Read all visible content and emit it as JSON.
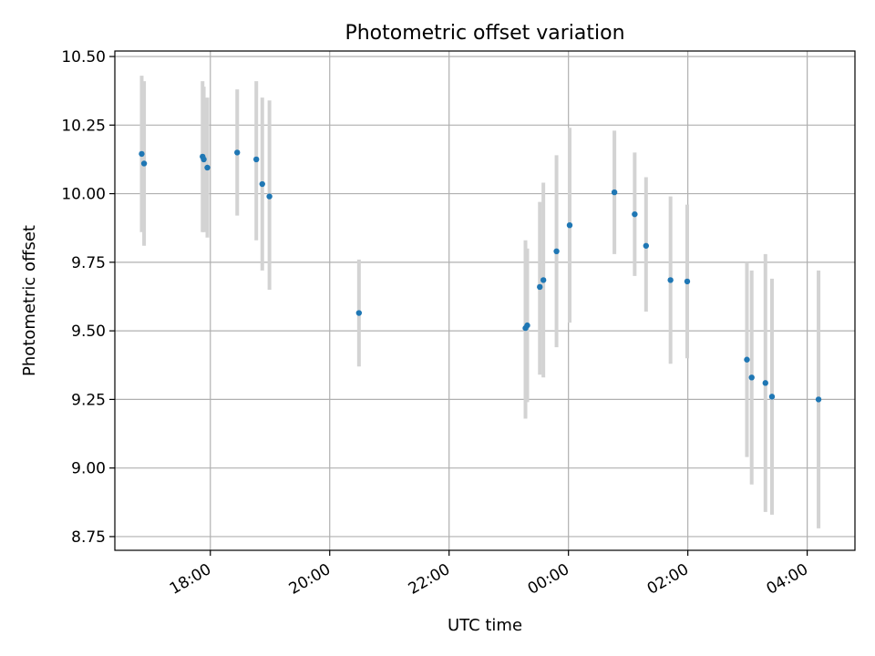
{
  "chart_data": {
    "type": "scatter",
    "title": "Photometric offset variation",
    "xlabel": "UTC time",
    "ylabel": "Photometric offset",
    "xlim_hours": [
      16.4,
      28.8
    ],
    "ylim": [
      8.7,
      10.52
    ],
    "grid": true,
    "x_ticks": [
      {
        "hour": 18,
        "label": "18:00"
      },
      {
        "hour": 20,
        "label": "20:00"
      },
      {
        "hour": 22,
        "label": "22:00"
      },
      {
        "hour": 24,
        "label": "00:00"
      },
      {
        "hour": 26,
        "label": "02:00"
      },
      {
        "hour": 28,
        "label": "04:00"
      }
    ],
    "y_ticks": [
      {
        "value": 8.75,
        "label": "8.75"
      },
      {
        "value": 9.0,
        "label": "9.00"
      },
      {
        "value": 9.25,
        "label": "9.25"
      },
      {
        "value": 9.5,
        "label": "9.50"
      },
      {
        "value": 9.75,
        "label": "9.75"
      },
      {
        "value": 10.0,
        "label": "10.00"
      },
      {
        "value": 10.25,
        "label": "10.25"
      },
      {
        "value": 10.5,
        "label": "10.50"
      }
    ],
    "point_color": "#1f77b4",
    "errorbar_color": "#d3d3d3",
    "points": [
      {
        "hour": 16.85,
        "y": 10.145,
        "lo": 9.86,
        "hi": 10.43
      },
      {
        "hour": 16.89,
        "y": 10.11,
        "lo": 9.81,
        "hi": 10.41
      },
      {
        "hour": 17.87,
        "y": 10.135,
        "lo": 9.86,
        "hi": 10.41
      },
      {
        "hour": 17.89,
        "y": 10.125,
        "lo": 9.86,
        "hi": 10.39
      },
      {
        "hour": 17.95,
        "y": 10.095,
        "lo": 9.84,
        "hi": 10.35
      },
      {
        "hour": 18.45,
        "y": 10.15,
        "lo": 9.92,
        "hi": 10.38
      },
      {
        "hour": 18.77,
        "y": 10.125,
        "lo": 9.83,
        "hi": 10.41
      },
      {
        "hour": 18.87,
        "y": 10.035,
        "lo": 9.72,
        "hi": 10.35
      },
      {
        "hour": 18.99,
        "y": 9.99,
        "lo": 9.65,
        "hi": 10.34
      },
      {
        "hour": 20.49,
        "y": 9.565,
        "lo": 9.37,
        "hi": 9.76
      },
      {
        "hour": 23.28,
        "y": 9.51,
        "lo": 9.18,
        "hi": 9.83
      },
      {
        "hour": 23.31,
        "y": 9.52,
        "lo": 9.24,
        "hi": 9.8
      },
      {
        "hour": 23.52,
        "y": 9.66,
        "lo": 9.34,
        "hi": 9.97
      },
      {
        "hour": 23.58,
        "y": 9.685,
        "lo": 9.33,
        "hi": 10.04
      },
      {
        "hour": 23.8,
        "y": 9.79,
        "lo": 9.44,
        "hi": 10.14
      },
      {
        "hour": 24.02,
        "y": 9.885,
        "lo": 9.53,
        "hi": 10.24
      },
      {
        "hour": 24.77,
        "y": 10.005,
        "lo": 9.78,
        "hi": 10.23
      },
      {
        "hour": 25.11,
        "y": 9.925,
        "lo": 9.7,
        "hi": 10.15
      },
      {
        "hour": 25.3,
        "y": 9.81,
        "lo": 9.57,
        "hi": 10.06
      },
      {
        "hour": 25.71,
        "y": 9.685,
        "lo": 9.38,
        "hi": 9.99
      },
      {
        "hour": 25.99,
        "y": 9.68,
        "lo": 9.4,
        "hi": 9.96
      },
      {
        "hour": 26.99,
        "y": 9.395,
        "lo": 9.04,
        "hi": 9.75
      },
      {
        "hour": 27.07,
        "y": 9.33,
        "lo": 8.94,
        "hi": 9.72
      },
      {
        "hour": 27.3,
        "y": 9.31,
        "lo": 8.84,
        "hi": 9.78
      },
      {
        "hour": 27.41,
        "y": 9.26,
        "lo": 8.83,
        "hi": 9.69
      },
      {
        "hour": 28.19,
        "y": 9.25,
        "lo": 8.78,
        "hi": 9.72
      }
    ]
  }
}
